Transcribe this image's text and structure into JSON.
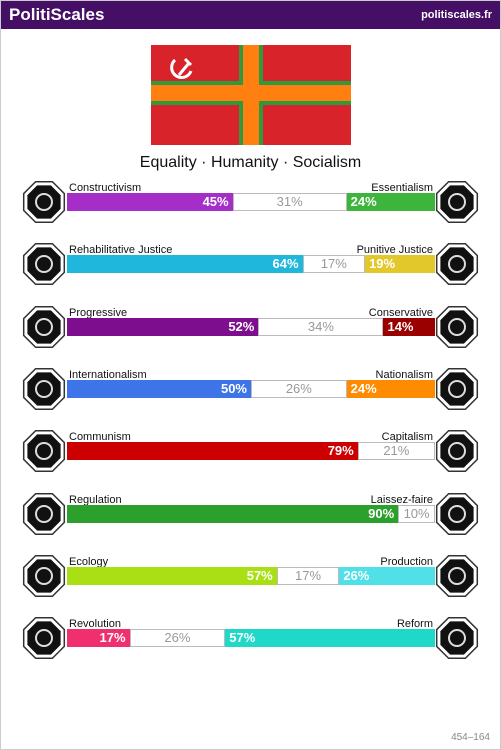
{
  "header": {
    "title": "PolitiScales",
    "site": "politiscales.fr"
  },
  "motto": "Equality · Humanity · Socialism",
  "axes": [
    {
      "left": {
        "name": "Constructivism",
        "value": 45,
        "label": "45%",
        "color": "#a52ec8"
      },
      "middle": {
        "value": 31,
        "label": "31%"
      },
      "right": {
        "name": "Essentialism",
        "value": 24,
        "label": "24%",
        "color": "#3db53d"
      }
    },
    {
      "left": {
        "name": "Rehabilitative Justice",
        "value": 64,
        "label": "64%",
        "color": "#1fb8dc"
      },
      "middle": {
        "value": 17,
        "label": "17%"
      },
      "right": {
        "name": "Punitive Justice",
        "value": 19,
        "label": "19%",
        "color": "#e2c82a"
      }
    },
    {
      "left": {
        "name": "Progressive",
        "value": 52,
        "label": "52%",
        "color": "#7d0f8e"
      },
      "middle": {
        "value": 34,
        "label": "34%"
      },
      "right": {
        "name": "Conservative",
        "value": 14,
        "label": "14%",
        "color": "#9a0000"
      }
    },
    {
      "left": {
        "name": "Internationalism",
        "value": 50,
        "label": "50%",
        "color": "#3d74e8"
      },
      "middle": {
        "value": 26,
        "label": "26%"
      },
      "right": {
        "name": "Nationalism",
        "value": 24,
        "label": "24%",
        "color": "#ff8c00"
      }
    },
    {
      "left": {
        "name": "Communism",
        "value": 79,
        "label": "79%",
        "color": "#cc0000"
      },
      "middle": {
        "value": 21,
        "label": "21%"
      },
      "right": {
        "name": "Capitalism"
      }
    },
    {
      "left": {
        "name": "Regulation",
        "value": 90,
        "label": "90%",
        "color": "#2ca02c"
      },
      "middle": {
        "value": 10,
        "label": "10%"
      },
      "right": {
        "name": "Laissez-faire"
      }
    },
    {
      "left": {
        "name": "Ecology",
        "value": 57,
        "label": "57%",
        "color": "#a8e014"
      },
      "middle": {
        "value": 17,
        "label": "17%"
      },
      "right": {
        "name": "Production",
        "value": 26,
        "label": "26%",
        "color": "#4fe0e8"
      }
    },
    {
      "left": {
        "name": "Revolution",
        "value": 17,
        "label": "17%",
        "color": "#f0306e"
      },
      "middle": {
        "value": 26,
        "label": "26%"
      },
      "right": {
        "name": "Reform",
        "value": 57,
        "label": "57%",
        "color": "#20d8c8"
      }
    }
  ],
  "footer": "454–164"
}
